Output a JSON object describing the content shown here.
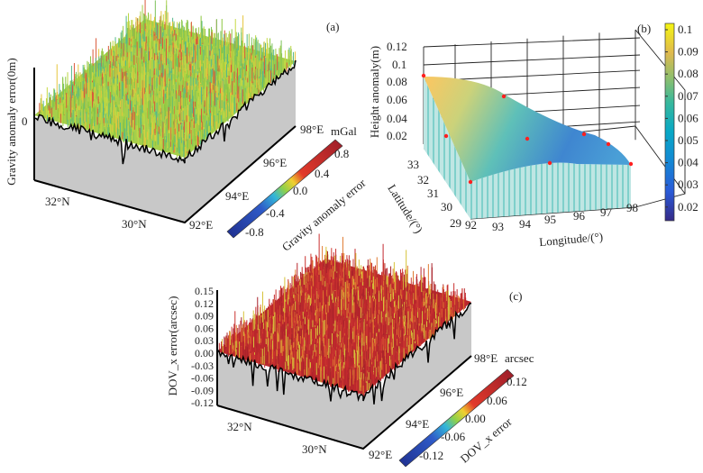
{
  "chart_data": [
    {
      "panel": "(a)",
      "type": "surface",
      "zlabel": "Gravity anomaly error(0m)",
      "z_ticks": [
        "0"
      ],
      "lat_ticks": [
        "32°N",
        "30°N"
      ],
      "lon_ticks": [
        "92°E",
        "94°E",
        "96°E",
        "98°E"
      ],
      "colorbar": {
        "label": "Gravity anomaly error",
        "unit": "mGal",
        "ticks": [
          "-0.8",
          "-0.4",
          "0.0",
          "0.4",
          "0.8"
        ],
        "range": [
          -1.0,
          1.0
        ],
        "colormap": "jet"
      }
    },
    {
      "panel": "(b)",
      "type": "surface",
      "xlabel": "Longitude/(°)",
      "ylabel": "Latitude/(°)",
      "zlabel": "Height anomaly(m)",
      "x_ticks": [
        "92",
        "93",
        "94",
        "95",
        "96",
        "97",
        "98"
      ],
      "y_ticks": [
        "29",
        "30",
        "31",
        "32",
        "33"
      ],
      "z_ticks": [
        "0.02",
        "0.04",
        "0.06",
        "0.08",
        "0.1",
        "0.12"
      ],
      "xlim": [
        92,
        98
      ],
      "ylim": [
        29,
        33
      ],
      "zlim": [
        0,
        0.12
      ],
      "grid": true,
      "markers": {
        "color": "#ff2020",
        "count": 9
      },
      "colorbar": {
        "ticks": [
          "0.1",
          "0.09",
          "0.08",
          "0.07",
          "0.06",
          "0.05",
          "0.04",
          "0.03",
          "0.02"
        ],
        "range": [
          0.013,
          0.103
        ],
        "colormap": "parula",
        "placement": "right"
      }
    },
    {
      "panel": "(c)",
      "type": "surface",
      "zlabel": "DOV_x error(arcsec)",
      "z_ticks": [
        "0.15",
        "0.12",
        "0.09",
        "0.06",
        "0.03",
        "0.00",
        "-0.03",
        "-0.06",
        "-0.09",
        "-0.12"
      ],
      "lat_ticks": [
        "32°N",
        "30°N"
      ],
      "lon_ticks": [
        "92°E",
        "94°E",
        "96°E",
        "98°E"
      ],
      "colorbar": {
        "label": "DOV_x error",
        "unit": "arcsec",
        "ticks": [
          "-0.12",
          "-0.06",
          "0.00",
          "0.06",
          "0.12"
        ],
        "range": [
          -0.15,
          0.15
        ],
        "colormap": "jet"
      }
    }
  ]
}
